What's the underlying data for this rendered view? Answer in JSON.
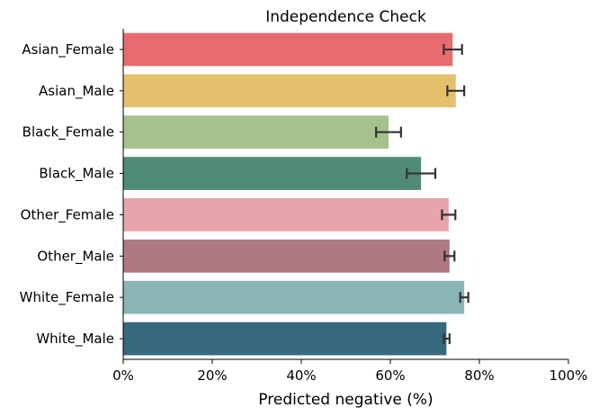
{
  "chart_data": {
    "type": "bar",
    "orientation": "horizontal",
    "title": "Independence Check",
    "xlabel": "Predicted negative (%)",
    "ylabel": "",
    "xlim": [
      0,
      1
    ],
    "xticks": [
      "0%",
      "20%",
      "40%",
      "60%",
      "80%",
      "100%"
    ],
    "grid": false,
    "categories": [
      "Asian_Female",
      "Asian_Male",
      "Black_Female",
      "Black_Male",
      "Other_Female",
      "Other_Male",
      "White_Female",
      "White_Male"
    ],
    "values": [
      0.74,
      0.747,
      0.596,
      0.669,
      0.731,
      0.733,
      0.766,
      0.726
    ],
    "error_low": [
      0.72,
      0.728,
      0.568,
      0.637,
      0.716,
      0.722,
      0.757,
      0.72
    ],
    "error_high": [
      0.761,
      0.766,
      0.624,
      0.701,
      0.746,
      0.744,
      0.775,
      0.733
    ],
    "colors": [
      "#e86b6e",
      "#e4c06d",
      "#a6c08e",
      "#4f8b77",
      "#e7a4ab",
      "#b07883",
      "#89b5b4",
      "#35697b"
    ],
    "error_color": "#333333"
  }
}
